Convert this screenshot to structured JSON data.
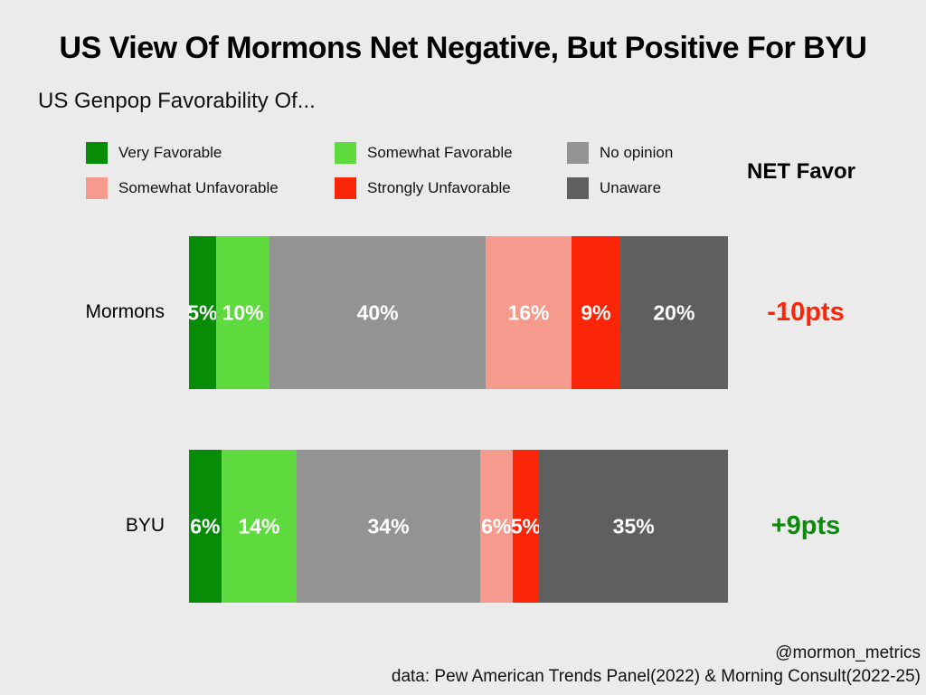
{
  "title": "US View Of Mormons Net Negative, But Positive For BYU",
  "subtitle": "US Genpop Favorability Of...",
  "net_header": "NET Favor",
  "credit": {
    "handle": "@mormon_metrics",
    "source": "data: Pew American Trends Panel(2022) & Morning Consult(2022-25)"
  },
  "colors": {
    "very_favorable": "#068c06",
    "somewhat_favorable": "#5fda3e",
    "no_opinion": "#939393",
    "somewhat_unfavorable": "#f69a8d",
    "strongly_unfavorable": "#fb2508",
    "unaware": "#5f5f5f",
    "net_negative": "#fb2508",
    "net_positive": "#0b8a0b"
  },
  "chart_data": {
    "type": "bar",
    "orientation": "horizontal",
    "stacked": true,
    "title": "US View Of Mormons Net Negative, But Positive For BYU",
    "subtitle": "US Genpop Favorability Of...",
    "categories": [
      "Mormons",
      "BYU"
    ],
    "series": [
      {
        "name": "Very Favorable",
        "key": "very_favorable",
        "values": [
          5,
          6
        ],
        "labels": [
          "5%",
          "6%"
        ]
      },
      {
        "name": "Somewhat Favorable",
        "key": "somewhat_favorable",
        "values": [
          10,
          14
        ],
        "labels": [
          "10%",
          "14%"
        ]
      },
      {
        "name": "No opinion",
        "key": "no_opinion",
        "values": [
          40,
          34
        ],
        "labels": [
          "40%",
          "34%"
        ]
      },
      {
        "name": "Somewhat Unfavorable",
        "key": "somewhat_unfavorable",
        "values": [
          16,
          6
        ],
        "labels": [
          "16%",
          "6%"
        ]
      },
      {
        "name": "Strongly Unfavorable",
        "key": "strongly_unfavorable",
        "values": [
          9,
          5
        ],
        "labels": [
          "9%",
          "5%"
        ]
      },
      {
        "name": "Unaware",
        "key": "unaware",
        "values": [
          20,
          35
        ],
        "labels": [
          "20%",
          "35%"
        ]
      }
    ],
    "net_favor": [
      {
        "category": "Mormons",
        "value": -10,
        "label": "-10pts"
      },
      {
        "category": "BYU",
        "value": 9,
        "label": "+9pts"
      }
    ],
    "legend_order": [
      "Very Favorable",
      "Somewhat Favorable",
      "No opinion",
      "Somewhat Unfavorable",
      "Strongly Unfavorable",
      "Unaware"
    ],
    "legend_position": "top",
    "xlim": [
      0,
      100
    ],
    "grid": false
  }
}
